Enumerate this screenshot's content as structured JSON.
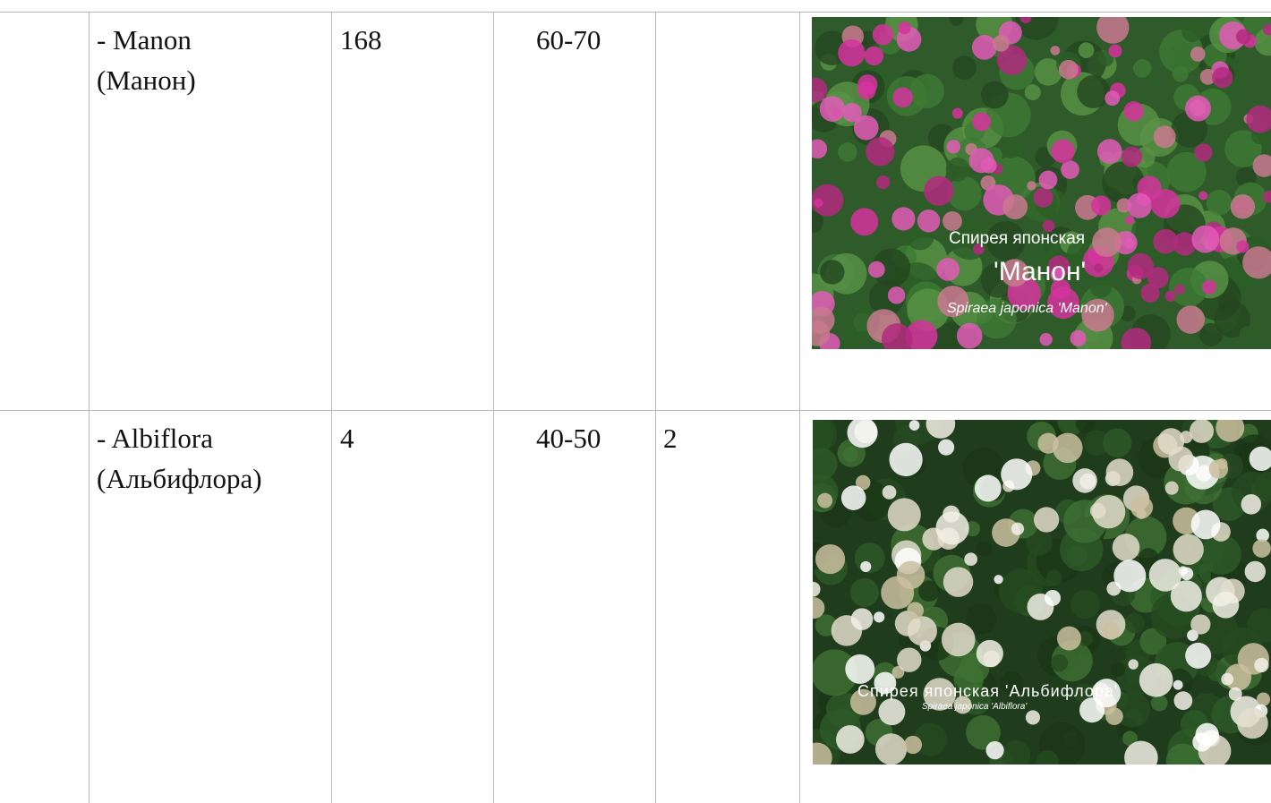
{
  "table": {
    "rows": [
      {
        "name": [
          "- Manon",
          "(Манон)"
        ],
        "count": 168,
        "height": "60-70",
        "photo": {
          "caption": [
            "Спирея японская",
            "'Манон'"
          ],
          "latin": "Spiraea japonica 'Manon'"
        }
      },
      {
        "name": [
          "- Albiflora",
          "(Альбифлора)"
        ],
        "count": 4,
        "height": "40-50",
        "extra": 2,
        "photo": {
          "caption": [
            "Спирея японская 'Альбифлора'"
          ],
          "latin": "Spiraea japonica 'Albiflora'"
        }
      }
    ]
  }
}
